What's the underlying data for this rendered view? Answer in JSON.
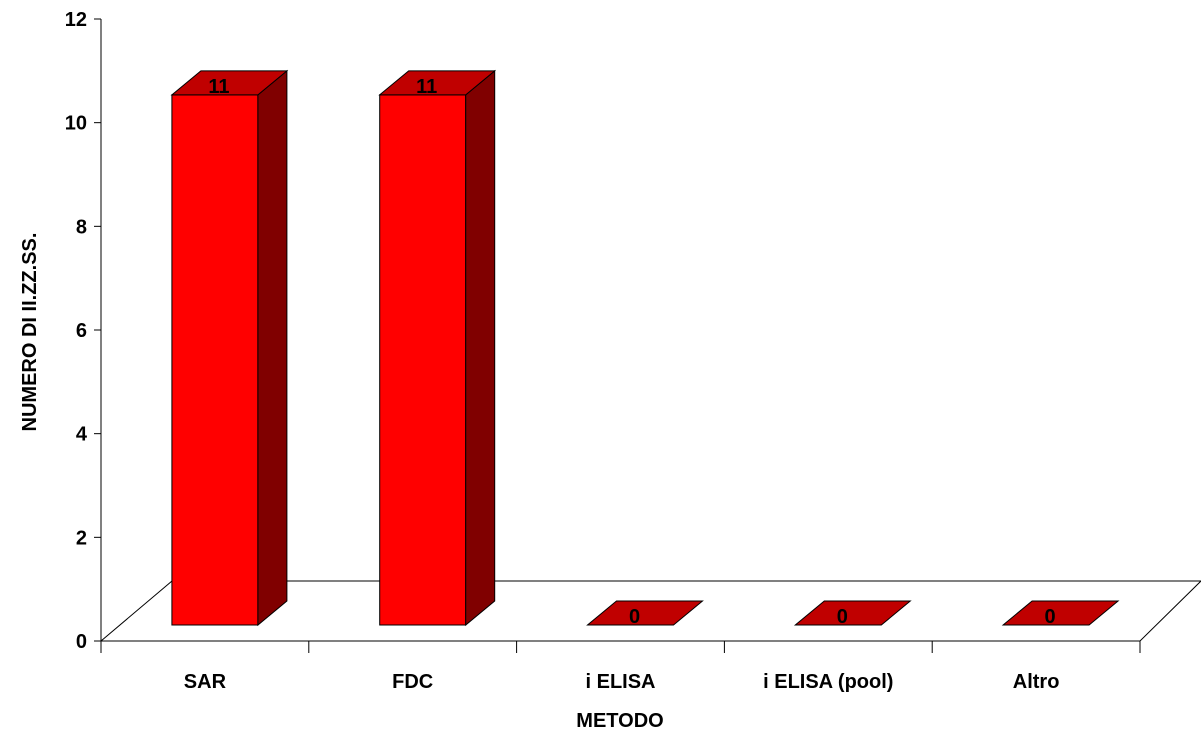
{
  "chart_data": {
    "type": "bar",
    "title": "",
    "xlabel": "METODO",
    "ylabel": "NUMERO DI II.ZZ.SS.",
    "categories": [
      "SAR",
      "FDC",
      "i ELISA",
      "i ELISA (pool)",
      "Altro"
    ],
    "values": [
      11,
      11,
      0,
      0,
      0
    ],
    "data_labels": [
      "11",
      "11",
      "0",
      "0",
      "0"
    ],
    "ylim": [
      0,
      12
    ],
    "yticks": [
      "0",
      "2",
      "4",
      "6",
      "8",
      "10",
      "12"
    ],
    "grid": false,
    "legend": "none",
    "style": "3d-column",
    "colors": {
      "bar_front": "#ff0000",
      "bar_side": "#800000",
      "bar_top": "#c00000",
      "floor": "#ffffff",
      "axis": "#000000"
    }
  }
}
